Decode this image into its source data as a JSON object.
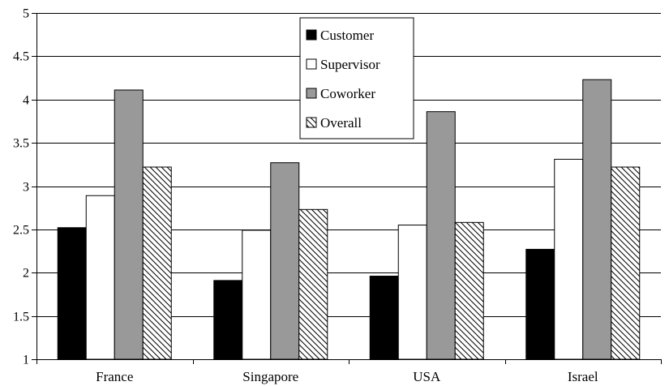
{
  "chart_data": {
    "type": "bar",
    "categories": [
      "France",
      "Singapore",
      "USA",
      "Israel"
    ],
    "series": [
      {
        "name": "Customer",
        "values": [
          2.52,
          1.91,
          1.96,
          2.27
        ],
        "fill": "#000000",
        "pattern": "solid"
      },
      {
        "name": "Supervisor",
        "values": [
          2.89,
          2.49,
          2.55,
          3.31
        ],
        "fill": "#ffffff",
        "pattern": "solid"
      },
      {
        "name": "Coworker",
        "values": [
          4.11,
          3.27,
          3.86,
          4.23
        ],
        "fill": "#999999",
        "pattern": "solid"
      },
      {
        "name": "Overall",
        "values": [
          3.22,
          2.73,
          2.58,
          3.22
        ],
        "fill": "#ffffff",
        "pattern": "hatch"
      }
    ],
    "ylim": [
      1,
      5
    ],
    "yticks": [
      "1",
      "1.5",
      "2",
      "2.5",
      "3",
      "3.5",
      "4",
      "4.5",
      "5"
    ],
    "grid": true,
    "legend_position": "top-center",
    "title": "",
    "xlabel": "",
    "ylabel": ""
  }
}
